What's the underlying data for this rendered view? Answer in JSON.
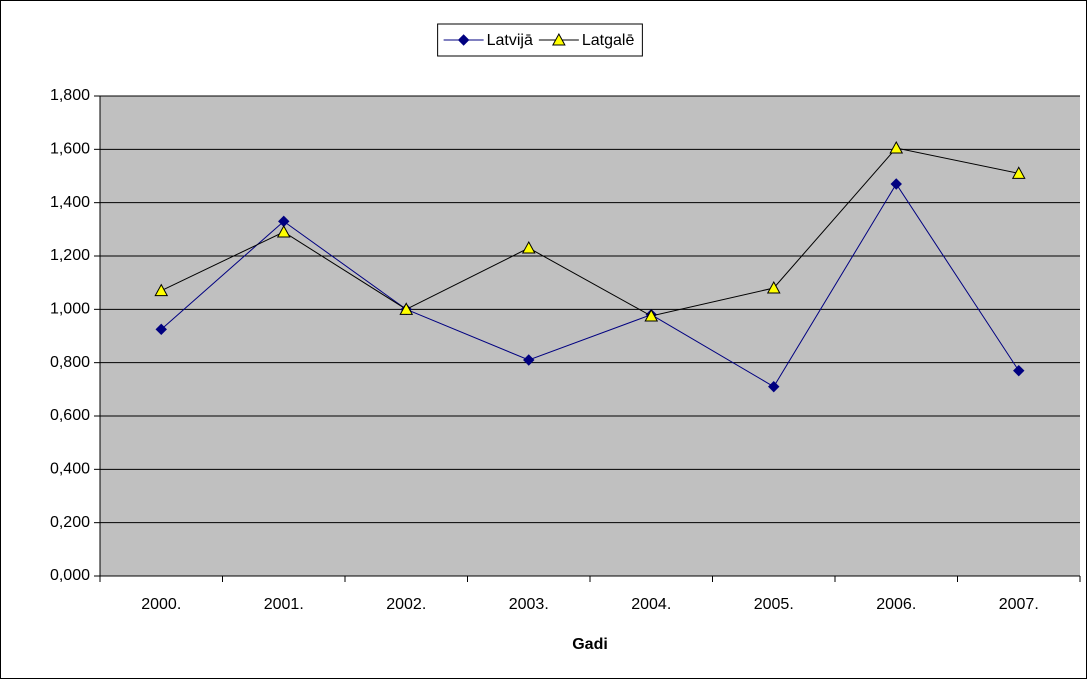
{
  "chart_data": {
    "type": "line",
    "x_label": "Gadi",
    "categories": [
      "2000.",
      "2001.",
      "2002.",
      "2003.",
      "2004.",
      "2005.",
      "2006.",
      "2007."
    ],
    "series": [
      {
        "name": "Latvijā",
        "color": "#000080",
        "marker": "diamond",
        "marker_color": "#000080",
        "values": [
          0.925,
          1.33,
          1.0,
          0.81,
          0.98,
          0.71,
          1.47,
          0.77
        ]
      },
      {
        "name": "Latgalē",
        "color": "#000000",
        "marker": "triangle",
        "marker_color": "#ffff00",
        "values": [
          1.07,
          1.29,
          1.0,
          1.23,
          0.975,
          1.08,
          1.605,
          1.51
        ]
      }
    ],
    "ylim": [
      0,
      1.8
    ],
    "yticks": [
      {
        "value": 0,
        "label": "0,000"
      },
      {
        "value": 0.2,
        "label": "0,200"
      },
      {
        "value": 0.4,
        "label": "0,400"
      },
      {
        "value": 0.6,
        "label": "0,600"
      },
      {
        "value": 0.8,
        "label": "0,800"
      },
      {
        "value": 1.0,
        "label": "1,000"
      },
      {
        "value": 1.2,
        "label": "1,200"
      },
      {
        "value": 1.4,
        "label": "1,400"
      },
      {
        "value": 1.6,
        "label": "1,600"
      },
      {
        "value": 1.8,
        "label": "1,800"
      }
    ],
    "grid": true,
    "plot_background": "#c0c0c0",
    "legend": "top"
  }
}
